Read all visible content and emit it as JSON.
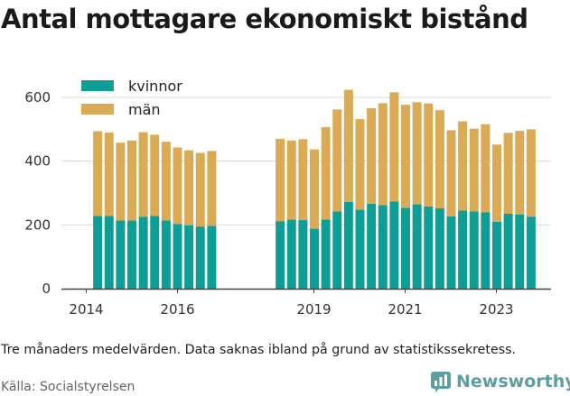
{
  "title": "Antal mottagare ekonomiskt bistånd",
  "note": "Tre månaders medelvärden. Data saknas ibland på grund av statistikssekretess.",
  "source": "Källa: Socialstyrelsen",
  "brand": {
    "name": "Newsworthy",
    "icon": "newsworthy-logo-icon"
  },
  "colors": {
    "kvinnor": "#0f9e96",
    "man": "#daaa55",
    "axis": "#444444",
    "grid": "#d8d8d8"
  },
  "chart_data": {
    "type": "bar",
    "stacked": true,
    "ylim": [
      0,
      650
    ],
    "yticks": [
      0,
      200,
      400,
      600
    ],
    "xticks": [
      "2014",
      "2016",
      "2019",
      "2021",
      "2023"
    ],
    "grid": "horizontal",
    "legend_position": "top-left",
    "series": [
      {
        "name": "kvinnor",
        "values": [
          228,
          228,
          214,
          214,
          225,
          228,
          214,
          203,
          199,
          195,
          197,
          212,
          217,
          215,
          188,
          217,
          242,
          272,
          248,
          266,
          262,
          274,
          254,
          265,
          258,
          252,
          227,
          245,
          242,
          240,
          210,
          235,
          233,
          226
        ]
      },
      {
        "name": "män",
        "values": [
          266,
          262,
          244,
          251,
          266,
          255,
          247,
          240,
          235,
          231,
          235,
          258,
          248,
          254,
          249,
          290,
          320,
          352,
          284,
          300,
          320,
          342,
          323,
          320,
          323,
          308,
          270,
          280,
          260,
          276,
          242,
          254,
          262,
          274
        ]
      }
    ],
    "periods": [
      "2014-Q2",
      "2014-Q3",
      "2014-Q4",
      "2015-Q1",
      "2015-Q2",
      "2015-Q3",
      "2015-Q4",
      "2016-Q1",
      "2016-Q2",
      "2016-Q3",
      "2016-Q4",
      "2018-Q2",
      "2018-Q3",
      "2018-Q4",
      "2019-Q1",
      "2019-Q2",
      "2019-Q3",
      "2019-Q4",
      "2020-Q1",
      "2020-Q2",
      "2020-Q3",
      "2020-Q4",
      "2021-Q1",
      "2021-Q2",
      "2021-Q3",
      "2021-Q4",
      "2022-Q1",
      "2022-Q2",
      "2022-Q3",
      "2022-Q4",
      "2023-Q1",
      "2023-Q2",
      "2023-Q3",
      "2023-Q4"
    ]
  }
}
